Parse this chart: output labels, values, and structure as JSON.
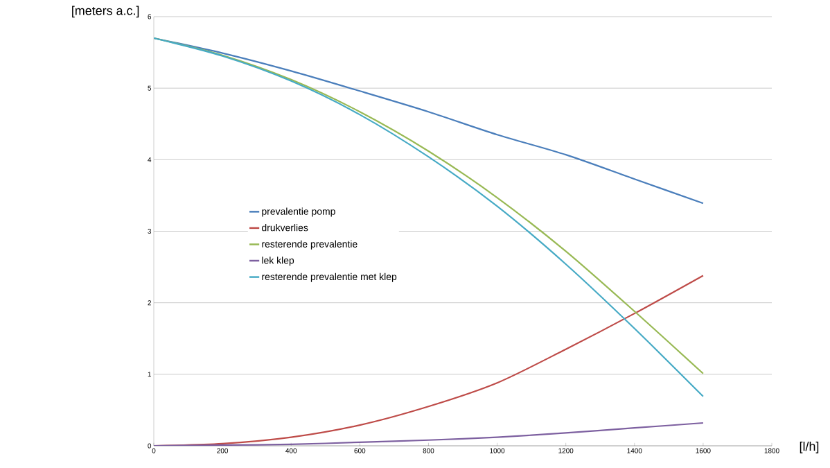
{
  "chart_data": {
    "type": "line",
    "xlabel": "[l/h]",
    "ylabel": "[meters a.c.]",
    "xlim": [
      0,
      1800
    ],
    "ylim": [
      0,
      6
    ],
    "xticks": [
      0,
      200,
      400,
      600,
      800,
      1000,
      1200,
      1400,
      1600,
      1800
    ],
    "yticks": [
      0,
      1,
      2,
      3,
      4,
      5,
      6
    ],
    "grid": "y",
    "legend": "left",
    "marker": "none",
    "line_style": "solid",
    "series": [
      {
        "name": "prevalentie pomp",
        "color": "#4a7ebb",
        "x": [
          0,
          200,
          400,
          600,
          800,
          1000,
          1200,
          1400,
          1600
        ],
        "values": [
          5.7,
          5.49,
          5.24,
          4.96,
          4.67,
          4.35,
          4.07,
          3.73,
          3.39
        ]
      },
      {
        "name": "drukverlies",
        "color": "#be4b48",
        "x": [
          0,
          200,
          400,
          600,
          800,
          1000,
          1200,
          1400,
          1600
        ],
        "values": [
          0,
          0.03,
          0.12,
          0.29,
          0.55,
          0.88,
          1.35,
          1.85,
          2.38
        ]
      },
      {
        "name": "resterende prevalentie",
        "color": "#98b954",
        "x": [
          0,
          200,
          400,
          600,
          800,
          1000,
          1200,
          1400,
          1600
        ],
        "values": [
          5.7,
          5.46,
          5.12,
          4.67,
          4.12,
          3.47,
          2.72,
          1.88,
          1.01
        ]
      },
      {
        "name": "lek klep",
        "color": "#7d60a0",
        "x": [
          0,
          200,
          400,
          600,
          800,
          1000,
          1200,
          1400,
          1600
        ],
        "values": [
          0,
          0.01,
          0.02,
          0.05,
          0.08,
          0.12,
          0.18,
          0.25,
          0.32
        ]
      },
      {
        "name": "resterende prevalentie met klep",
        "color": "#46aac5",
        "x": [
          0,
          200,
          400,
          600,
          800,
          1000,
          1200,
          1400,
          1600
        ],
        "values": [
          5.7,
          5.45,
          5.1,
          4.63,
          4.04,
          3.35,
          2.54,
          1.64,
          0.69
        ]
      }
    ]
  }
}
